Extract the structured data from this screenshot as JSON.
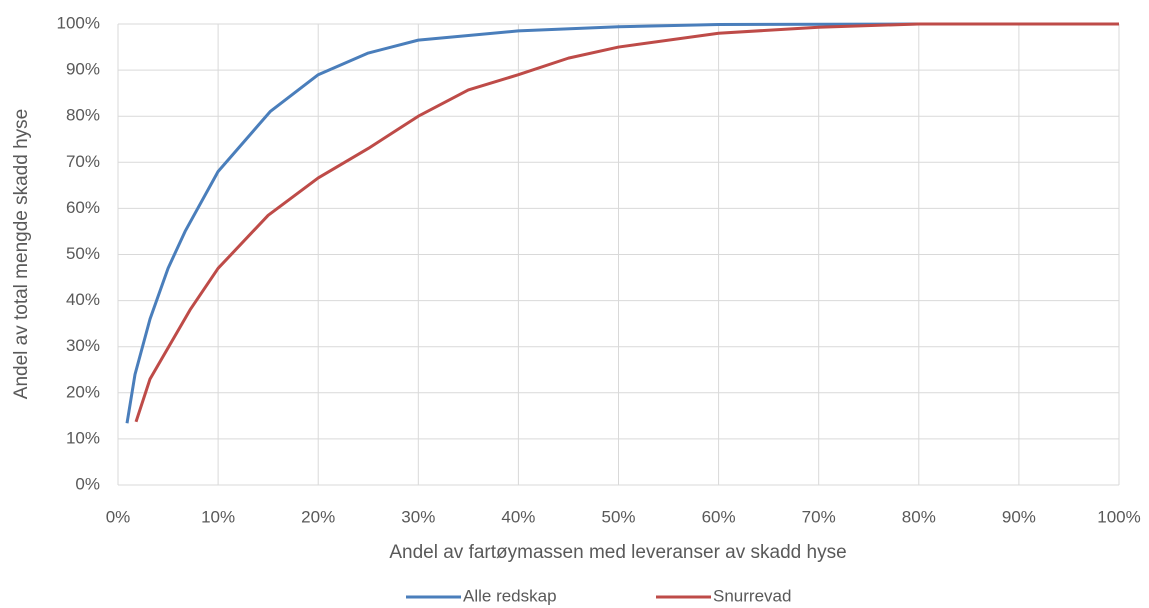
{
  "chart_data": {
    "type": "line",
    "xlabel": "Andel av fartøymassen med leveranser av skadd hyse",
    "ylabel": "Andel av total mengde skadd hyse",
    "xlim": [
      0,
      100
    ],
    "ylim": [
      0,
      100
    ],
    "xticks": [
      {
        "value": 0,
        "label": "0%"
      },
      {
        "value": 10,
        "label": "10%"
      },
      {
        "value": 20,
        "label": "20%"
      },
      {
        "value": 30,
        "label": "30%"
      },
      {
        "value": 40,
        "label": "40%"
      },
      {
        "value": 50,
        "label": "50%"
      },
      {
        "value": 60,
        "label": "60%"
      },
      {
        "value": 70,
        "label": "70%"
      },
      {
        "value": 80,
        "label": "80%"
      },
      {
        "value": 90,
        "label": "90%"
      },
      {
        "value": 100,
        "label": "100%"
      }
    ],
    "yticks": [
      {
        "value": 0,
        "label": "0%"
      },
      {
        "value": 10,
        "label": "10%"
      },
      {
        "value": 20,
        "label": "20%"
      },
      {
        "value": 30,
        "label": "30%"
      },
      {
        "value": 40,
        "label": "40%"
      },
      {
        "value": 50,
        "label": "50%"
      },
      {
        "value": 60,
        "label": "60%"
      },
      {
        "value": 70,
        "label": "70%"
      },
      {
        "value": 80,
        "label": "80%"
      },
      {
        "value": 90,
        "label": "90%"
      },
      {
        "value": 100,
        "label": "100%"
      }
    ],
    "grid": true,
    "legend": "bottom",
    "series": [
      {
        "name": "Alle redskap",
        "color": "#4a7ebb",
        "x": [
          0.9,
          1.7,
          3.2,
          5,
          6.7,
          10,
          15.2,
          20,
          25,
          30,
          40,
          50,
          60,
          80,
          100
        ],
        "values": [
          13.4,
          24,
          36,
          47,
          55,
          68,
          81,
          89,
          93.7,
          96.5,
          98.5,
          99.4,
          99.9,
          100,
          100
        ]
      },
      {
        "name": "Snurrevad",
        "color": "#be4b48",
        "x": [
          1.8,
          3.2,
          7.2,
          10,
          15,
          20,
          25,
          30,
          35,
          40,
          45,
          50,
          60,
          70,
          80,
          100
        ],
        "values": [
          13.7,
          23,
          38,
          47,
          58.5,
          66.6,
          73,
          80,
          85.7,
          89,
          92.6,
          95,
          98,
          99.3,
          100,
          100
        ]
      }
    ]
  }
}
